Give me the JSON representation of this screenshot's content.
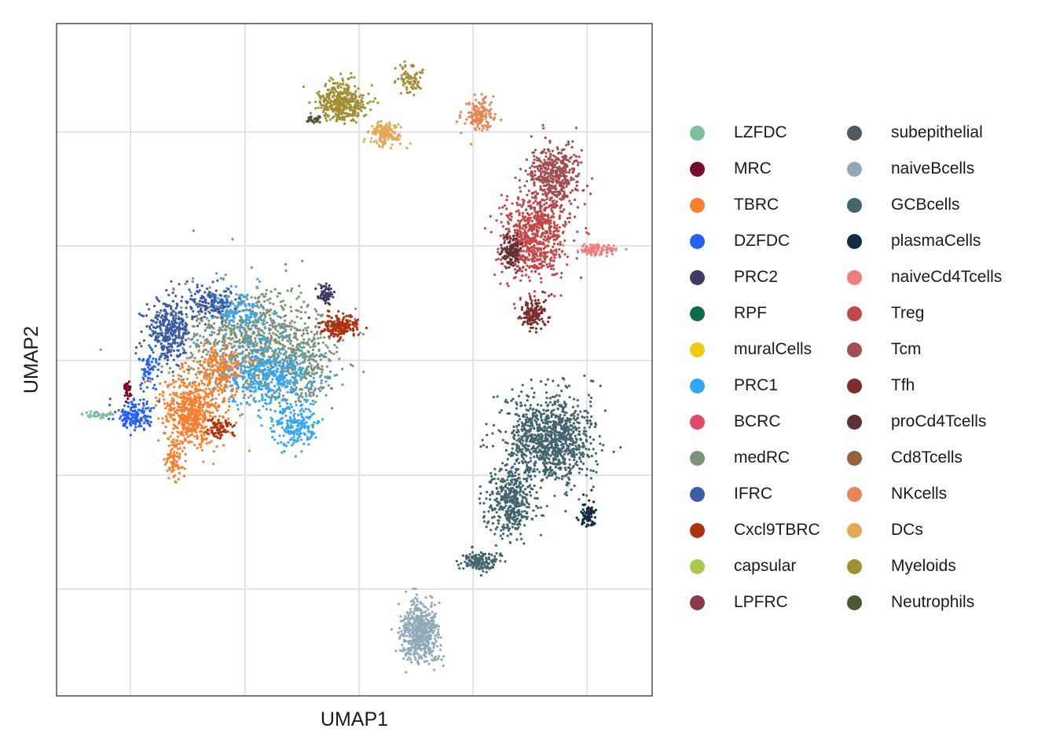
{
  "chart_data": {
    "type": "scatter",
    "title": "",
    "xlabel": "UMAP1",
    "ylabel": "UMAP2",
    "grid": true,
    "x_ticks_labeled": false,
    "y_ticks_labeled": false,
    "legend_position": "right",
    "series": [
      {
        "name": "LZFDC",
        "color": "#7fbf9f"
      },
      {
        "name": "MRC",
        "color": "#7a0a2e"
      },
      {
        "name": "TBRC",
        "color": "#f77f2e"
      },
      {
        "name": "DZFDC",
        "color": "#2561f2"
      },
      {
        "name": "PRC2",
        "color": "#3e3a66"
      },
      {
        "name": "RPF",
        "color": "#0f6b4b"
      },
      {
        "name": "muralCells",
        "color": "#f0c913"
      },
      {
        "name": "PRC1",
        "color": "#33a7f3"
      },
      {
        "name": "BCRC",
        "color": "#e24a6a"
      },
      {
        "name": "medRC",
        "color": "#7b937a"
      },
      {
        "name": "IFRC",
        "color": "#3c5ba5"
      },
      {
        "name": "Cxcl9TBRC",
        "color": "#ab3411"
      },
      {
        "name": "capsular",
        "color": "#a9c94e"
      },
      {
        "name": "LPFRC",
        "color": "#8b3a4d"
      },
      {
        "name": "subepithelial",
        "color": "#53575f"
      },
      {
        "name": "naiveBcells",
        "color": "#91aab8"
      },
      {
        "name": "GCBcells",
        "color": "#43656e"
      },
      {
        "name": "plasmaCells",
        "color": "#0f2c41"
      },
      {
        "name": "naiveCd4Tcells",
        "color": "#ef7f7f"
      },
      {
        "name": "Treg",
        "color": "#c04848"
      },
      {
        "name": "Tcm",
        "color": "#a14f50"
      },
      {
        "name": "Tfh",
        "color": "#7c2e2e"
      },
      {
        "name": "proCd4Tcells",
        "color": "#5e3134"
      },
      {
        "name": "Cd8Tcells",
        "color": "#98613d"
      },
      {
        "name": "NKcells",
        "color": "#e68556"
      },
      {
        "name": "DCs",
        "color": "#e3a957"
      },
      {
        "name": "Myeloids",
        "color": "#a28f35"
      },
      {
        "name": "Neutrophils",
        "color": "#4a5933"
      }
    ]
  }
}
